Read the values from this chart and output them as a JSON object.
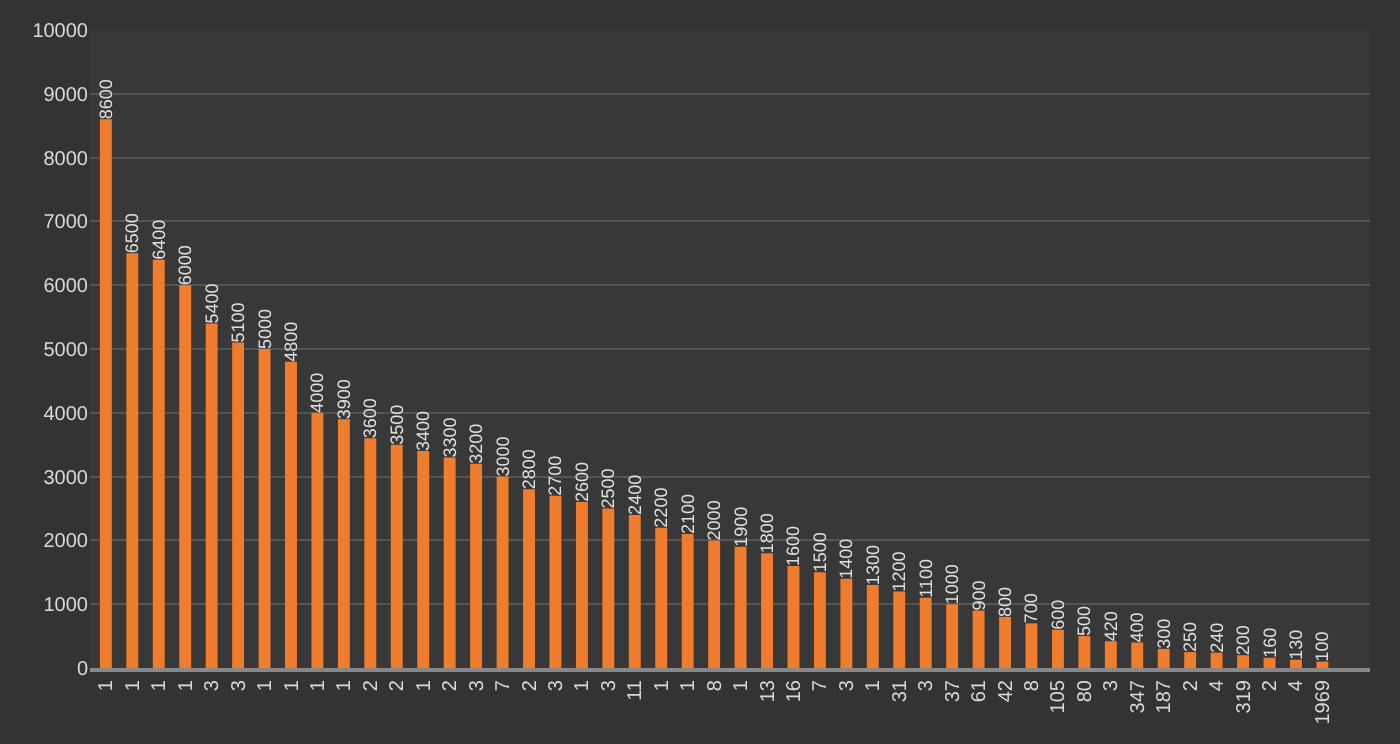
{
  "chart_data": {
    "type": "bar",
    "categories": [
      "1",
      "1",
      "1",
      "1",
      "3",
      "3",
      "1",
      "1",
      "1",
      "1",
      "2",
      "2",
      "1",
      "2",
      "3",
      "7",
      "2",
      "3",
      "1",
      "3",
      "11",
      "1",
      "1",
      "8",
      "1",
      "13",
      "16",
      "7",
      "3",
      "1",
      "31",
      "3",
      "37",
      "61",
      "42",
      "8",
      "105",
      "80",
      "3",
      "347",
      "187",
      "2",
      "4",
      "319",
      "2",
      "4",
      "1969"
    ],
    "values": [
      8600,
      6500,
      6400,
      6000,
      5400,
      5100,
      5000,
      4800,
      4000,
      3900,
      3600,
      3500,
      3400,
      3300,
      3200,
      3000,
      2800,
      2700,
      2600,
      2500,
      2400,
      2200,
      2100,
      2000,
      1900,
      1800,
      1600,
      1500,
      1400,
      1300,
      1200,
      1100,
      1000,
      900,
      800,
      700,
      600,
      500,
      420,
      400,
      300,
      250,
      240,
      200,
      160,
      130,
      100
    ],
    "color": "#f07d2e",
    "ylim": [
      0,
      10000
    ],
    "yticks": [
      0,
      1000,
      2000,
      3000,
      4000,
      5000,
      6000,
      7000,
      8000,
      9000,
      10000
    ],
    "grid": "y",
    "data_labels": true
  }
}
